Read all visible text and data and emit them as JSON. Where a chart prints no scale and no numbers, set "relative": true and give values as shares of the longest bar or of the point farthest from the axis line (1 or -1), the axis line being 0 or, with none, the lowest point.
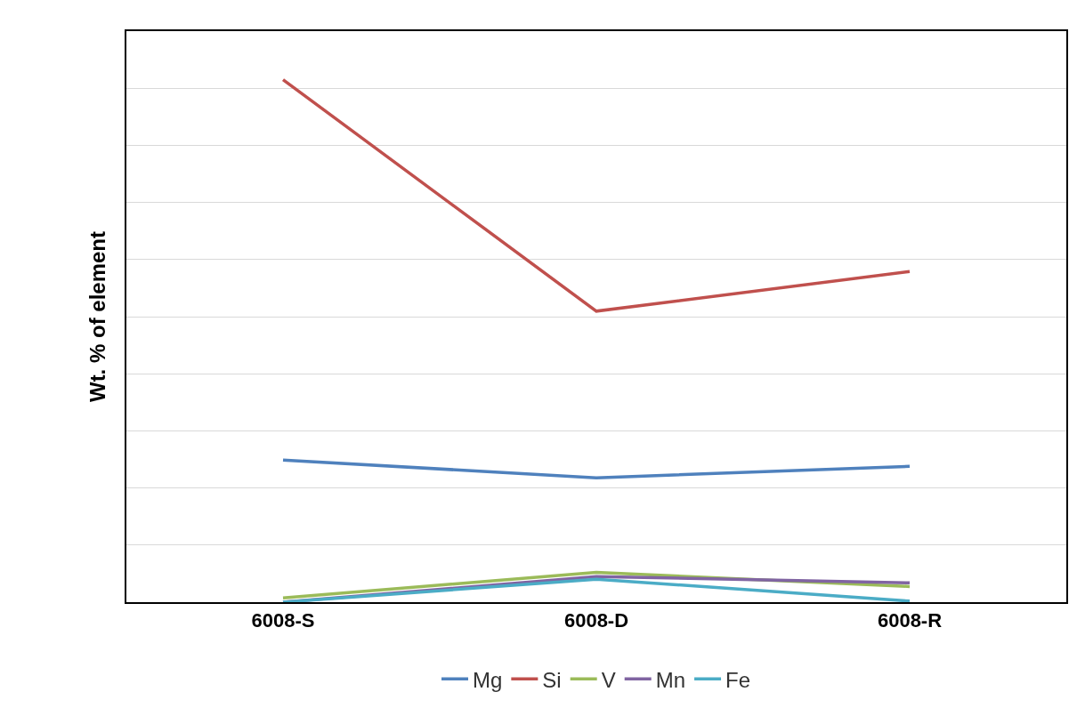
{
  "chart_data": {
    "type": "line",
    "ylabel": "Wt. % of element",
    "relative": true,
    "grid": "y",
    "legend": "bottom",
    "categories": [
      "6008-S",
      "6008-D",
      "6008-R"
    ],
    "series": [
      {
        "name": "Mg",
        "color": "#4f81bd",
        "values": [
          0.272,
          0.238,
          0.26
        ]
      },
      {
        "name": "Si",
        "color": "#c0504d",
        "values": [
          1,
          0.557,
          0.633
        ]
      },
      {
        "name": "V",
        "color": "#9bbb59",
        "values": [
          0.008,
          0.057,
          0.03
        ]
      },
      {
        "name": "Mn",
        "color": "#8064a2",
        "values": [
          0,
          0.049,
          0.037
        ]
      },
      {
        "name": "Fe",
        "color": "#4bacc6",
        "values": [
          0,
          0.044,
          0.002
        ]
      }
    ]
  }
}
